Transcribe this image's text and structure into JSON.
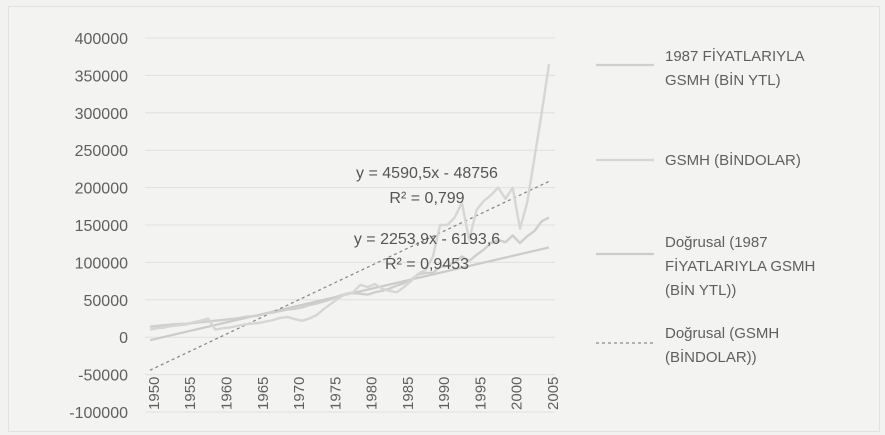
{
  "chart_data": {
    "type": "line",
    "title": "",
    "xlabel": "",
    "ylabel": "",
    "ylim": [
      -100000,
      400000
    ],
    "yticks": [
      {
        "value": 400000,
        "label": "400000"
      },
      {
        "value": 350000,
        "label": "350000"
      },
      {
        "value": 300000,
        "label": "300000"
      },
      {
        "value": 250000,
        "label": "250000"
      },
      {
        "value": 200000,
        "label": "200000"
      },
      {
        "value": 150000,
        "label": "150000"
      },
      {
        "value": 100000,
        "label": "100000"
      },
      {
        "value": 50000,
        "label": "50000"
      },
      {
        "value": 0,
        "label": "0"
      },
      {
        "value": -50000,
        "label": "-50000"
      },
      {
        "value": -100000,
        "label": "-100000"
      }
    ],
    "xticks": [
      "1950",
      "1955",
      "1960",
      "1965",
      "1970",
      "1975",
      "1980",
      "1985",
      "1990",
      "1995",
      "2000",
      "2005"
    ],
    "x": [
      1950,
      1951,
      1952,
      1953,
      1954,
      1955,
      1956,
      1957,
      1958,
      1959,
      1960,
      1961,
      1962,
      1963,
      1964,
      1965,
      1966,
      1967,
      1968,
      1969,
      1970,
      1971,
      1972,
      1973,
      1974,
      1975,
      1976,
      1977,
      1978,
      1979,
      1980,
      1981,
      1982,
      1983,
      1984,
      1985,
      1986,
      1987,
      1988,
      1989,
      1990,
      1991,
      1992,
      1993,
      1994,
      1995,
      1996,
      1997,
      1998,
      1999,
      2000,
      2001,
      2002,
      2003,
      2004,
      2005
    ],
    "grid": true,
    "legend_position": "right",
    "series": [
      {
        "name": "1987 FİYATLARIYLA GSMH (BİN YTL)",
        "color": "#cfcfcd",
        "values": [
          14000,
          15000,
          16000,
          17000,
          17500,
          18000,
          19000,
          20000,
          21000,
          22000,
          23000,
          24000,
          25000,
          27000,
          28000,
          29000,
          32000,
          33000,
          35000,
          37000,
          38000,
          40000,
          43000,
          45000,
          48000,
          51000,
          55000,
          58000,
          59000,
          58000,
          57000,
          60000,
          62000,
          65000,
          69000,
          72000,
          77000,
          84000,
          86000,
          86000,
          94000,
          95000,
          100000,
          108000,
          102000,
          110000,
          117000,
          126000,
          130000,
          127000,
          136000,
          126000,
          135000,
          142000,
          155000,
          160000
        ]
      },
      {
        "name": "GSMH  (BİNDOLAR)",
        "color": "#d6d6d4",
        "values": [
          10000,
          12000,
          13000,
          15000,
          16000,
          17000,
          20000,
          22000,
          25000,
          10000,
          12000,
          13000,
          15000,
          17000,
          18000,
          19000,
          21000,
          23000,
          26000,
          27000,
          24000,
          22000,
          25000,
          30000,
          38000,
          45000,
          52000,
          58000,
          60000,
          70000,
          67000,
          71000,
          65000,
          62000,
          60000,
          67000,
          75000,
          85000,
          90000,
          108000,
          150000,
          150000,
          160000,
          180000,
          130000,
          170000,
          182000,
          190000,
          200000,
          185000,
          200000,
          145000,
          180000,
          240000,
          300000,
          365000
        ]
      }
    ],
    "trendlines": [
      {
        "name": "Doğrusal (1987 FİYATLARIYLA GSMH (BİN YTL))",
        "slope": 2253.9,
        "intercept": -6193.6,
        "color": "#cbcbc9",
        "dashed": false
      },
      {
        "name": "Doğrusal (GSMH (BİNDOLAR))",
        "slope": 4590.5,
        "intercept": -48756,
        "color": "#8a8a8a",
        "dashed": true
      }
    ],
    "annotations": [
      {
        "line1": "y = 4590,5x - 48756",
        "line2": "R² = 0,799"
      },
      {
        "line1": "y = 2253,9x - 6193,6",
        "line2": "R² = 0,9453"
      }
    ],
    "legend": [
      {
        "lines": [
          "1987 FİYATLARIYLA",
          "GSMH (BİN YTL)"
        ],
        "color": "#cfcfcd",
        "dashed": false
      },
      {
        "lines": [
          "GSMH  (BİNDOLAR)"
        ],
        "color": "#d6d6d4",
        "dashed": false
      },
      {
        "lines": [
          "Doğrusal (1987",
          "FİYATLARIYLA GSMH",
          "(BİN YTL))"
        ],
        "color": "#cbcbc9",
        "dashed": false
      },
      {
        "lines": [
          "Doğrusal (GSMH",
          "(BİNDOLAR))"
        ],
        "color": "#8a8a8a",
        "dashed": true
      }
    ]
  }
}
